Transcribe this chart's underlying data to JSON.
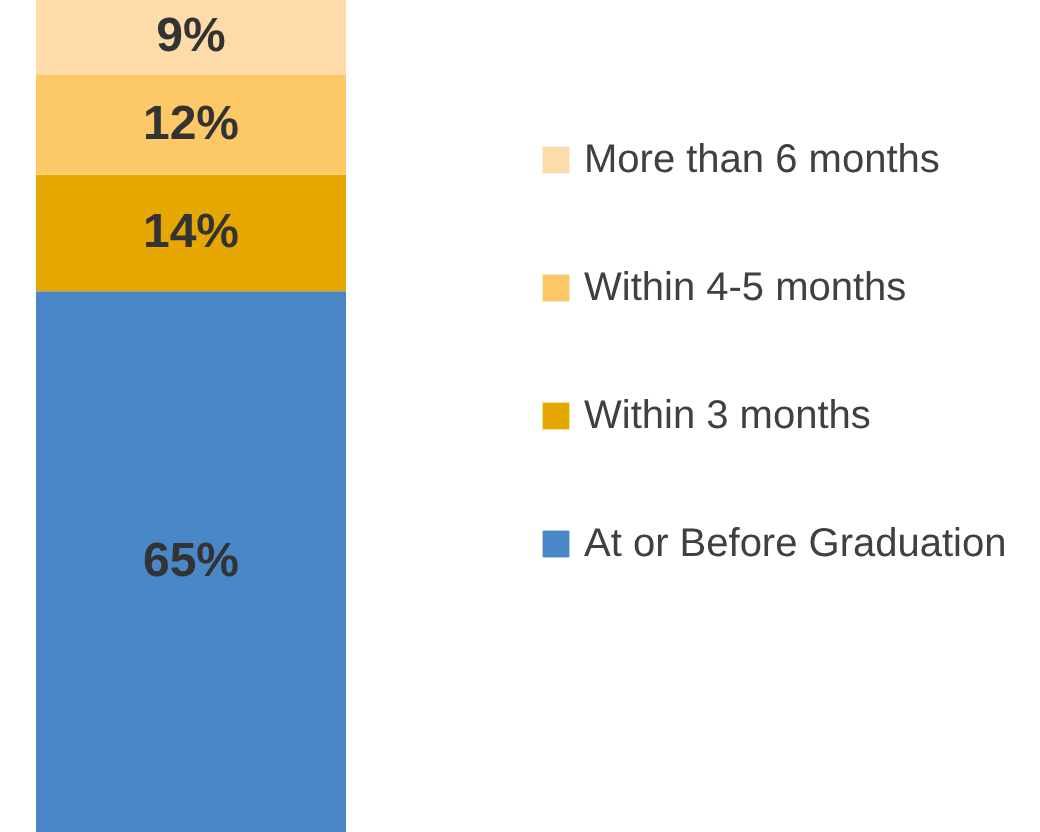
{
  "chart_data": {
    "type": "bar",
    "stacked": true,
    "categories": [
      null
    ],
    "tick_labels": false,
    "legend": "right",
    "series": [
      {
        "name": "At or Before Graduation",
        "color": "#4a87c9",
        "values": [
          65
        ],
        "value_labels": [
          "65%"
        ]
      },
      {
        "name": "Within 3 months",
        "color": "#e6a800",
        "values": [
          14
        ],
        "value_labels": [
          "14%"
        ]
      },
      {
        "name": "Within 4-5 months",
        "color": "#fdc867",
        "values": [
          12
        ],
        "value_labels": [
          "12%"
        ]
      },
      {
        "name": "More than 6 months",
        "color": "#fddcaa",
        "values": [
          9
        ],
        "value_labels": [
          "9%"
        ]
      }
    ]
  }
}
